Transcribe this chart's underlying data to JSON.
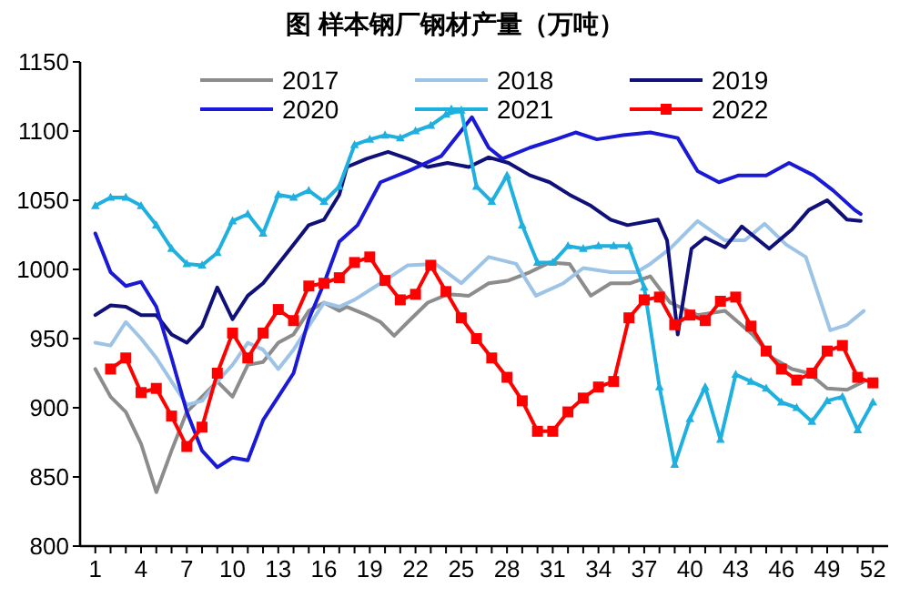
{
  "chart_data": {
    "type": "line",
    "title": "图 样本钢厂钢材产量（万吨）",
    "xlim": [
      0,
      53
    ],
    "ylim": [
      800,
      1150
    ],
    "yticks": [
      800,
      850,
      900,
      950,
      1000,
      1050,
      1100,
      1150
    ],
    "xticks": [
      1,
      {
        "value": 2,
        "label": null
      },
      {
        "value": 3,
        "label": null
      },
      4,
      {
        "value": 5,
        "label": null
      },
      {
        "value": 6,
        "label": null
      },
      7,
      {
        "value": 8,
        "label": null
      },
      {
        "value": 9,
        "label": null
      },
      10,
      {
        "value": 11,
        "label": null
      },
      {
        "value": 12,
        "label": null
      },
      13,
      {
        "value": 14,
        "label": null
      },
      {
        "value": 15,
        "label": null
      },
      16,
      {
        "value": 17,
        "label": null
      },
      {
        "value": 18,
        "label": null
      },
      19,
      {
        "value": 20,
        "label": null
      },
      {
        "value": 21,
        "label": null
      },
      22,
      {
        "value": 23,
        "label": null
      },
      {
        "value": 24,
        "label": null
      },
      25,
      {
        "value": 26,
        "label": null
      },
      {
        "value": 27,
        "label": null
      },
      28,
      {
        "value": 29,
        "label": null
      },
      {
        "value": 30,
        "label": null
      },
      31,
      {
        "value": 32,
        "label": null
      },
      {
        "value": 33,
        "label": null
      },
      34,
      {
        "value": 35,
        "label": null
      },
      {
        "value": 36,
        "label": null
      },
      37,
      {
        "value": 38,
        "label": null
      },
      {
        "value": 39,
        "label": null
      },
      40,
      {
        "value": 41,
        "label": null
      },
      {
        "value": 42,
        "label": null
      },
      43,
      {
        "value": 44,
        "label": null
      },
      {
        "value": 45,
        "label": null
      },
      46,
      {
        "value": 47,
        "label": null
      },
      {
        "value": 48,
        "label": null
      },
      49,
      {
        "value": 50,
        "label": null
      },
      {
        "value": 51,
        "label": null
      },
      52
    ],
    "grid": false,
    "legend": "top",
    "line_style": "solid",
    "series": [
      {
        "name": "2017",
        "color": "#8c8c8c",
        "marker": "none",
        "x": [
          1,
          2,
          3,
          4,
          5,
          6,
          7,
          8,
          9,
          10,
          11,
          12,
          13,
          14,
          15,
          16,
          17,
          17.5,
          18.8,
          19.7,
          20.6,
          21.5,
          22.8,
          24.1,
          25.5,
          26.8,
          28.1,
          29.5,
          30.8,
          32.1,
          33.5,
          34.8,
          36.1,
          37.4,
          38.7,
          40.5,
          42.3,
          44.1,
          45.4,
          46.7,
          47.8,
          49,
          50.3,
          51.4
        ],
        "values": [
          928,
          908,
          897,
          874,
          839,
          869,
          897,
          908,
          919,
          908,
          931,
          933,
          947,
          953,
          970,
          976,
          970,
          973,
          967,
          962,
          952,
          962,
          976,
          982,
          981,
          990,
          992,
          998,
          1005,
          1004,
          981,
          990,
          990,
          995,
          976,
          967,
          970,
          953,
          936,
          928,
          925,
          914,
          913,
          919
        ]
      },
      {
        "name": "2018",
        "color": "#9dc3e6",
        "marker": "none",
        "x": [
          1,
          2,
          3,
          4,
          5,
          6,
          7,
          8,
          9,
          10,
          11,
          12,
          13,
          14,
          15,
          16,
          17,
          18,
          19.7,
          21.5,
          23.3,
          25,
          26.8,
          28.6,
          29.9,
          31.7,
          33,
          34.8,
          36.5,
          37.4,
          38.7,
          40.5,
          42.3,
          43.6,
          44.9,
          46.3,
          47.6,
          49.2,
          50.3,
          51.4
        ],
        "values": [
          947,
          945,
          962,
          950,
          936,
          919,
          902,
          905,
          919,
          931,
          947,
          942,
          928,
          942,
          959,
          976,
          973,
          978,
          990,
          1003,
          1004,
          990,
          1009,
          1004,
          981,
          990,
          1001,
          998,
          998,
          1004,
          1015,
          1035,
          1021,
          1021,
          1033,
          1018,
          1009,
          956,
          960,
          970
        ]
      },
      {
        "name": "2019",
        "color": "#10107a",
        "marker": "none",
        "x": [
          1,
          2,
          3,
          4,
          5,
          6,
          7,
          8,
          9,
          10,
          11,
          12,
          13,
          14,
          15,
          16,
          17,
          17.5,
          18.8,
          20.2,
          21.5,
          22.8,
          24.1,
          25.5,
          26.8,
          28.1,
          29.5,
          30.8,
          32.1,
          33.5,
          34.8,
          35.9,
          37.9,
          38.5,
          39.2,
          40.1,
          41,
          42.3,
          43.4,
          45.2,
          46.7,
          47.8,
          49,
          50.3,
          51.2
        ],
        "values": [
          967,
          974,
          973,
          967,
          967,
          953,
          947,
          959,
          987,
          964,
          981,
          990,
          1004,
          1018,
          1032,
          1036,
          1054,
          1074,
          1080,
          1085,
          1080,
          1074,
          1077,
          1074,
          1081,
          1077,
          1068,
          1063,
          1054,
          1046,
          1036,
          1032,
          1036,
          1021,
          953,
          1015,
          1023,
          1016,
          1031,
          1015,
          1029,
          1043,
          1050,
          1036,
          1035
        ]
      },
      {
        "name": "2020",
        "color": "#1a1ad6",
        "marker": "none",
        "x": [
          1,
          2,
          3,
          4,
          5,
          6,
          7,
          8,
          9,
          10,
          11,
          12,
          13,
          14,
          15,
          16,
          17,
          18.2,
          19.7,
          21.5,
          23.7,
          25.7,
          26.8,
          27.7,
          29.5,
          31.2,
          32.5,
          33.9,
          35.6,
          37.4,
          39.2,
          40.5,
          41.9,
          43.2,
          45,
          46.5,
          48.1,
          49.4,
          50.8,
          51.2
        ],
        "values": [
          1026,
          998,
          988,
          991,
          973,
          936,
          897,
          869,
          857,
          864,
          862,
          891,
          908,
          925,
          964,
          990,
          1020,
          1032,
          1063,
          1071,
          1082,
          1110,
          1088,
          1080,
          1088,
          1094,
          1099,
          1094,
          1097,
          1099,
          1095,
          1071,
          1063,
          1068,
          1068,
          1077,
          1068,
          1057,
          1043,
          1040
        ]
      },
      {
        "name": "2021",
        "color": "#1fb0e0",
        "marker": "triangle",
        "x": [
          1,
          2,
          3,
          4,
          5,
          6,
          7,
          8,
          9,
          10,
          11,
          12,
          13,
          14,
          15,
          16,
          17,
          18,
          19,
          20,
          21,
          22,
          23,
          24,
          25,
          26,
          27,
          28,
          29,
          30,
          31,
          32,
          33,
          34,
          35,
          36,
          37,
          38,
          39,
          40,
          41,
          42,
          43,
          44,
          45,
          46,
          47,
          48,
          49,
          50,
          51,
          52
        ],
        "values": [
          1046,
          1052,
          1052,
          1046,
          1032,
          1015,
          1004,
          1003,
          1012,
          1035,
          1040,
          1026,
          1054,
          1052,
          1057,
          1049,
          1060,
          1090,
          1094,
          1097,
          1095,
          1100,
          1104,
          1112,
          1115,
          1060,
          1049,
          1068,
          1032,
          1005,
          1005,
          1017,
          1015,
          1017,
          1017,
          1017,
          987,
          915,
          859,
          892,
          915,
          877,
          924,
          919,
          914,
          904,
          900,
          890,
          905,
          908,
          884,
          904
        ]
      },
      {
        "name": "2022",
        "color": "#ff0000",
        "marker": "square",
        "x": [
          2,
          3,
          4,
          5,
          6,
          7,
          8,
          9,
          10,
          11,
          12,
          13,
          14,
          15,
          16,
          17,
          18,
          19,
          20,
          21,
          22,
          23,
          24,
          25,
          26,
          27,
          28,
          29,
          30,
          31,
          32,
          33,
          34,
          35,
          36,
          37,
          38,
          39,
          40,
          41,
          42,
          43,
          44,
          45,
          46,
          47,
          48,
          49,
          50,
          51,
          52
        ],
        "values": [
          928,
          936,
          911,
          914,
          894,
          872,
          886,
          925,
          954,
          936,
          954,
          971,
          963,
          988,
          990,
          994,
          1005,
          1009,
          992,
          978,
          982,
          1003,
          984,
          965,
          950,
          936,
          922,
          905,
          883,
          883,
          897,
          907,
          915,
          919,
          965,
          978,
          980,
          960,
          967,
          963,
          977,
          980,
          959,
          941,
          928,
          920,
          925,
          941,
          945,
          922,
          918
        ]
      }
    ]
  }
}
